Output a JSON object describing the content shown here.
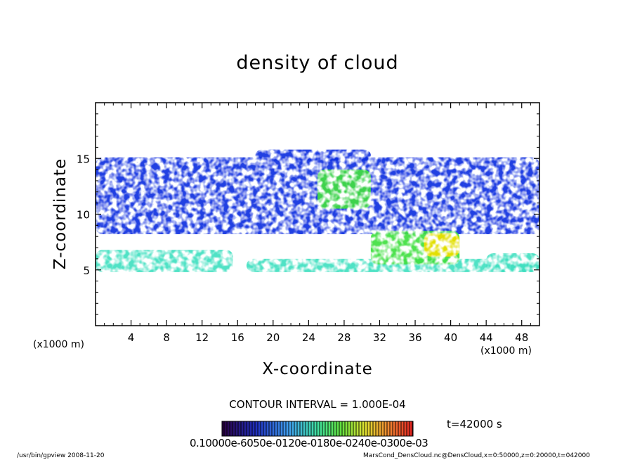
{
  "chart_data": {
    "type": "heatmap",
    "title": "density of cloud",
    "xlabel": "X-coordinate",
    "ylabel": "Z-coordinate",
    "x_unit_label": "(x1000 m)",
    "y_unit_label": "(x1000 m)",
    "xlim": [
      0,
      50
    ],
    "ylim": [
      0,
      20
    ],
    "xticks": [
      4,
      8,
      12,
      16,
      20,
      24,
      28,
      32,
      36,
      40,
      44,
      48
    ],
    "yticks": [
      5,
      10,
      15
    ],
    "xtick_labels": [
      "4",
      "8",
      "12",
      "16",
      "20",
      "24",
      "28",
      "32",
      "36",
      "40",
      "44",
      "48"
    ],
    "ytick_labels": [
      "5",
      "10",
      "15"
    ],
    "colormap": [
      "#2b0040",
      "#3a00a0",
      "#1030e0",
      "#2a8cf0",
      "#40e0c0",
      "#40e040",
      "#f0e000",
      "#f08000",
      "#e02020"
    ],
    "colorbar_labels": "0.10000e-6050e-0120e-0180e-0240e-0300e-03",
    "contour_interval": "CONTOUR INTERVAL = 1.000E-04",
    "time": "t=42000 s",
    "regions": [
      {
        "x0": 0,
        "x1": 50,
        "z0": 8.2,
        "z1": 15.1,
        "level": 0.25
      },
      {
        "x0": 18,
        "x1": 31,
        "z0": 14.8,
        "z1": 15.8,
        "level": 0.3
      },
      {
        "x0": 0,
        "x1": 15.5,
        "z0": 4.8,
        "z1": 6.8,
        "level": 0.5
      },
      {
        "x0": 17,
        "x1": 50,
        "z0": 4.8,
        "z1": 6.0,
        "level": 0.45
      },
      {
        "x0": 31,
        "x1": 41,
        "z0": 5.5,
        "z1": 8.5,
        "level": 0.6
      },
      {
        "x0": 25,
        "x1": 31,
        "z0": 10.5,
        "z1": 14.0,
        "level": 0.6
      },
      {
        "x0": 37,
        "x1": 41,
        "z0": 6.2,
        "z1": 8.3,
        "level": 0.75
      },
      {
        "x0": 44,
        "x1": 50,
        "z0": 4.8,
        "z1": 6.5,
        "level": 0.55
      }
    ]
  },
  "footer": {
    "left": "/usr/bin/gpview   2008-11-20",
    "right": "MarsCond_DensCloud.nc@DensCloud,x=0:50000,z=0:20000,t=042000"
  }
}
